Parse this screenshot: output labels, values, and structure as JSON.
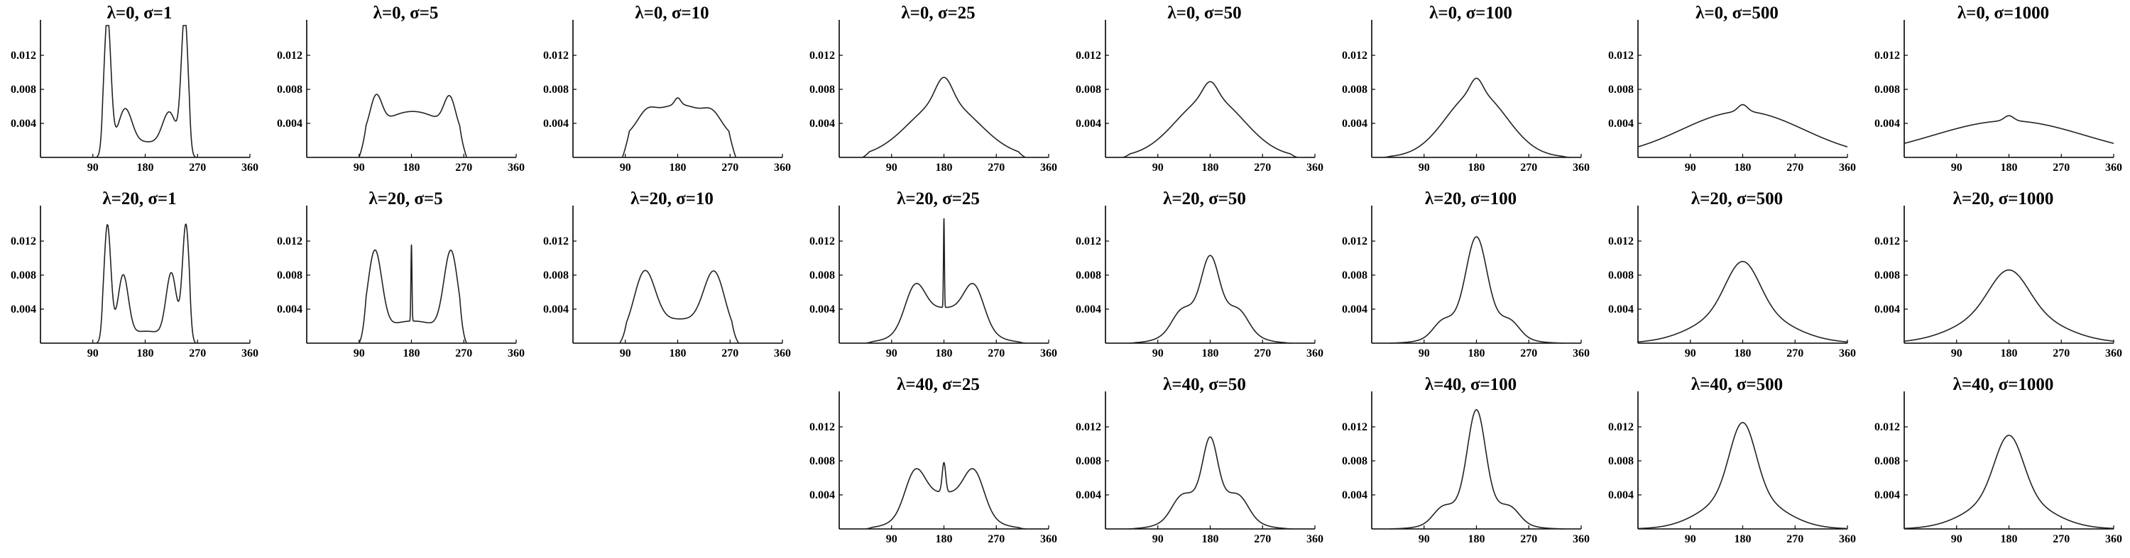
{
  "figure": {
    "rows": 3,
    "cols": 8
  },
  "chart_data": [
    {
      "type": "line",
      "title": "λ=0, σ=1",
      "row": 0,
      "col": 0,
      "xlim": [
        0,
        360
      ],
      "ylim": [
        0,
        0.0155
      ],
      "xticks": [
        90,
        180,
        270,
        360
      ],
      "yticks": [
        0.004,
        0.008,
        0.012
      ],
      "xtick_labels": [
        "90",
        "180",
        "270",
        "360"
      ],
      "ytick_labels": [
        "0.004",
        "0.008",
        "0.012"
      ],
      "peaks": [
        [
          115,
          0.016,
          6
        ],
        [
          145,
          0.0045,
          12
        ],
        [
          222,
          0.0043,
          12
        ],
        [
          248,
          0.016,
          6
        ]
      ],
      "base": [
        0.0018,
        180,
        40
      ],
      "curve_range": [
        95,
        268
      ]
    },
    {
      "type": "line",
      "title": "λ=0, σ=5",
      "row": 0,
      "col": 1,
      "xlim": [
        0,
        360
      ],
      "ylim": [
        0,
        0.0155
      ],
      "xticks": [
        90,
        180,
        270,
        360
      ],
      "yticks": [
        0.004,
        0.008,
        0.012
      ],
      "xtick_labels": [
        "90",
        "180",
        "270",
        "360"
      ],
      "ytick_labels": [
        "0.004",
        "0.008",
        "0.012"
      ],
      "peaks": [
        [
          119,
          0.0037,
          10
        ],
        [
          246,
          0.0036,
          10
        ]
      ],
      "base": [
        0.0054,
        182,
        72
      ],
      "curve_range": [
        90,
        275
      ]
    },
    {
      "type": "line",
      "title": "λ=0, σ=10",
      "row": 0,
      "col": 2,
      "xlim": [
        0,
        360
      ],
      "ylim": [
        0,
        0.0155
      ],
      "xticks": [
        90,
        180,
        270,
        360
      ],
      "yticks": [
        0.004,
        0.008,
        0.012
      ],
      "xtick_labels": [
        "90",
        "180",
        "270",
        "360"
      ],
      "ytick_labels": [
        "0.004",
        "0.008",
        "0.012"
      ],
      "peaks": [
        [
          126,
          0.0012,
          14
        ],
        [
          180,
          0.0008,
          5
        ],
        [
          240,
          0.0012,
          14
        ]
      ],
      "base": [
        0.0062,
        182,
        70
      ],
      "curve_range": [
        85,
        280
      ]
    },
    {
      "type": "line",
      "title": "λ=0, σ=25",
      "row": 0,
      "col": 3,
      "xlim": [
        0,
        360
      ],
      "ylim": [
        0,
        0.0155
      ],
      "xticks": [
        90,
        180,
        270,
        360
      ],
      "yticks": [
        0.004,
        0.008,
        0.012
      ],
      "xtick_labels": [
        "90",
        "180",
        "270",
        "360"
      ],
      "ytick_labels": [
        "0.004",
        "0.008",
        "0.012"
      ],
      "peaks": [
        [
          180,
          0.0028,
          14
        ]
      ],
      "base": [
        0.0066,
        180,
        60
      ],
      "curve_range": [
        40,
        320
      ]
    },
    {
      "type": "line",
      "title": "λ=0, σ=50",
      "row": 0,
      "col": 4,
      "xlim": [
        0,
        360
      ],
      "ylim": [
        0,
        0.0155
      ],
      "xticks": [
        90,
        180,
        270,
        360
      ],
      "yticks": [
        0.004,
        0.008,
        0.012
      ],
      "xtick_labels": [
        "90",
        "180",
        "270",
        "360"
      ],
      "ytick_labels": [
        "0.004",
        "0.008",
        "0.012"
      ],
      "peaks": [
        [
          180,
          0.0018,
          12
        ]
      ],
      "base": [
        0.0071,
        180,
        58
      ],
      "curve_range": [
        30,
        330
      ]
    },
    {
      "type": "line",
      "title": "λ=0, σ=100",
      "row": 0,
      "col": 5,
      "xlim": [
        0,
        360
      ],
      "ylim": [
        0,
        0.0155
      ],
      "xticks": [
        90,
        180,
        270,
        360
      ],
      "yticks": [
        0.004,
        0.008,
        0.012
      ],
      "xtick_labels": [
        "90",
        "180",
        "270",
        "360"
      ],
      "ytick_labels": [
        "0.004",
        "0.008",
        "0.012"
      ],
      "peaks": [
        [
          180,
          0.0016,
          10
        ]
      ],
      "base": [
        0.0077,
        180,
        52
      ],
      "curve_range": [
        20,
        340
      ]
    },
    {
      "type": "line",
      "title": "λ=0, σ=500",
      "row": 0,
      "col": 6,
      "xlim": [
        0,
        360
      ],
      "ylim": [
        0,
        0.0155
      ],
      "xticks": [
        90,
        180,
        270,
        360
      ],
      "yticks": [
        0.004,
        0.008,
        0.012
      ],
      "xtick_labels": [
        "90",
        "180",
        "270",
        "360"
      ],
      "ytick_labels": [
        "0.004",
        "0.008",
        "0.012"
      ],
      "peaks": [
        [
          180,
          0.0008,
          8
        ]
      ],
      "base": [
        0.0054,
        180,
        105
      ],
      "curve_range": [
        0,
        360
      ]
    },
    {
      "type": "line",
      "title": "λ=0, σ=1000",
      "row": 0,
      "col": 7,
      "xlim": [
        0,
        360
      ],
      "ylim": [
        0,
        0.0155
      ],
      "xticks": [
        90,
        180,
        270,
        360
      ],
      "yticks": [
        0.004,
        0.008,
        0.012
      ],
      "xtick_labels": [
        "90",
        "180",
        "270",
        "360"
      ],
      "ytick_labels": [
        "0.004",
        "0.008",
        "0.012"
      ],
      "peaks": [
        [
          180,
          0.0006,
          8
        ]
      ],
      "base": [
        0.0043,
        180,
        130
      ],
      "curve_range": [
        0,
        360
      ]
    },
    {
      "type": "line",
      "title": "λ=20, σ=1",
      "row": 1,
      "col": 0,
      "xlim": [
        0,
        360
      ],
      "ylim": [
        0,
        0.0155
      ],
      "xticks": [
        90,
        180,
        270,
        360
      ],
      "yticks": [
        0.004,
        0.008,
        0.012
      ],
      "xtick_labels": [
        "90",
        "180",
        "270",
        "360"
      ],
      "ytick_labels": [
        "0.004",
        "0.008",
        "0.012"
      ],
      "peaks": [
        [
          115,
          0.0135,
          6
        ],
        [
          142,
          0.0072,
          9
        ],
        [
          225,
          0.0075,
          9
        ],
        [
          250,
          0.0135,
          6
        ]
      ],
      "base": [
        0.0014,
        182,
        40
      ],
      "curve_range": [
        95,
        268
      ]
    },
    {
      "type": "line",
      "title": "λ=20, σ=5",
      "row": 1,
      "col": 1,
      "xlim": [
        0,
        360
      ],
      "ylim": [
        0,
        0.0155
      ],
      "xticks": [
        90,
        180,
        270,
        360
      ],
      "yticks": [
        0.004,
        0.008,
        0.012
      ],
      "xtick_labels": [
        "90",
        "180",
        "270",
        "360"
      ],
      "ytick_labels": [
        "0.004",
        "0.008",
        "0.012"
      ],
      "peaks": [
        [
          117,
          0.0095,
          12
        ],
        [
          248,
          0.0095,
          12
        ],
        [
          180,
          0.009,
          0.9
        ]
      ],
      "base": [
        0.0026,
        182,
        60
      ],
      "curve_range": [
        90,
        275
      ]
    },
    {
      "type": "line",
      "title": "λ=20, σ=10",
      "row": 1,
      "col": 2,
      "xlim": [
        0,
        360
      ],
      "ylim": [
        0,
        0.0155
      ],
      "xticks": [
        90,
        180,
        270,
        360
      ],
      "yticks": [
        0.004,
        0.008,
        0.012
      ],
      "xtick_labels": [
        "90",
        "180",
        "270",
        "360"
      ],
      "ytick_labels": [
        "0.004",
        "0.008",
        "0.012"
      ],
      "peaks": [
        [
          123,
          0.0068,
          18
        ],
        [
          243,
          0.0068,
          18
        ]
      ],
      "base": [
        0.0028,
        182,
        60
      ],
      "curve_range": [
        80,
        285
      ]
    },
    {
      "type": "line",
      "title": "λ=20, σ=25",
      "row": 1,
      "col": 3,
      "xlim": [
        0,
        360
      ],
      "ylim": [
        0,
        0.0155
      ],
      "xticks": [
        90,
        180,
        270,
        360
      ],
      "yticks": [
        0.004,
        0.008,
        0.012
      ],
      "xtick_labels": [
        "90",
        "180",
        "270",
        "360"
      ],
      "ytick_labels": [
        "0.004",
        "0.008",
        "0.012"
      ],
      "peaks": [
        [
          130,
          0.0045,
          17
        ],
        [
          232,
          0.0045,
          17
        ],
        [
          180,
          0.0105,
          0.8
        ]
      ],
      "base": [
        0.0041,
        181,
        50
      ],
      "curve_range": [
        45,
        320
      ]
    },
    {
      "type": "line",
      "title": "λ=20, σ=50",
      "row": 1,
      "col": 4,
      "xlim": [
        0,
        360
      ],
      "ylim": [
        0,
        0.0155
      ],
      "xticks": [
        90,
        180,
        270,
        360
      ],
      "yticks": [
        0.004,
        0.008,
        0.012
      ],
      "xtick_labels": [
        "90",
        "180",
        "270",
        "360"
      ],
      "ytick_labels": [
        "0.004",
        "0.008",
        "0.012"
      ],
      "peaks": [
        [
          180,
          0.0055,
          14
        ],
        [
          128,
          0.0015,
          15
        ],
        [
          232,
          0.0015,
          15
        ]
      ],
      "base": [
        0.0048,
        180,
        44
      ],
      "curve_range": [
        40,
        320
      ]
    },
    {
      "type": "line",
      "title": "λ=20, σ=100",
      "row": 1,
      "col": 5,
      "xlim": [
        0,
        360
      ],
      "ylim": [
        0,
        0.0155
      ],
      "xticks": [
        90,
        180,
        270,
        360
      ],
      "yticks": [
        0.004,
        0.008,
        0.012
      ],
      "xtick_labels": [
        "90",
        "180",
        "270",
        "360"
      ],
      "ytick_labels": [
        "0.004",
        "0.008",
        "0.012"
      ],
      "peaks": [
        [
          180,
          0.0088,
          17
        ],
        [
          120,
          0.0012,
          15
        ],
        [
          240,
          0.0012,
          15
        ]
      ],
      "base": [
        0.0037,
        180,
        45
      ],
      "curve_range": [
        30,
        330
      ]
    },
    {
      "type": "line",
      "title": "λ=20, σ=500",
      "row": 1,
      "col": 6,
      "xlim": [
        0,
        360
      ],
      "ylim": [
        0,
        0.0155
      ],
      "xticks": [
        90,
        180,
        270,
        360
      ],
      "yticks": [
        0.004,
        0.008,
        0.012
      ],
      "xtick_labels": [
        "90",
        "180",
        "270",
        "360"
      ],
      "ytick_labels": [
        "0.004",
        "0.008",
        "0.012"
      ],
      "peaks": [
        [
          180,
          0.0055,
          28
        ]
      ],
      "base": [
        0.0041,
        180,
        70
      ],
      "curve_range": [
        0,
        360
      ]
    },
    {
      "type": "line",
      "title": "λ=20, σ=1000",
      "row": 1,
      "col": 7,
      "xlim": [
        0,
        360
      ],
      "ylim": [
        0,
        0.0155
      ],
      "xticks": [
        90,
        180,
        270,
        360
      ],
      "yticks": [
        0.004,
        0.008,
        0.012
      ],
      "xtick_labels": [
        "90",
        "180",
        "270",
        "360"
      ],
      "ytick_labels": [
        "0.004",
        "0.008",
        "0.012"
      ],
      "peaks": [
        [
          180,
          0.0045,
          32
        ]
      ],
      "base": [
        0.0041,
        180,
        75
      ],
      "curve_range": [
        0,
        360
      ]
    },
    {
      "type": "line",
      "title": "λ=40, σ=25",
      "row": 2,
      "col": 3,
      "xlim": [
        0,
        360
      ],
      "ylim": [
        0,
        0.0155
      ],
      "xticks": [
        90,
        180,
        270,
        360
      ],
      "yticks": [
        0.004,
        0.008,
        0.012
      ],
      "xtick_labels": [
        "90",
        "180",
        "270",
        "360"
      ],
      "ytick_labels": [
        "0.004",
        "0.008",
        "0.012"
      ],
      "peaks": [
        [
          130,
          0.0045,
          17
        ],
        [
          232,
          0.0045,
          17
        ],
        [
          180,
          0.0035,
          3
        ]
      ],
      "base": [
        0.0042,
        181,
        50
      ],
      "curve_range": [
        45,
        320
      ]
    },
    {
      "type": "line",
      "title": "λ=40, σ=50",
      "row": 2,
      "col": 4,
      "xlim": [
        0,
        360
      ],
      "ylim": [
        0,
        0.0155
      ],
      "xticks": [
        90,
        180,
        270,
        360
      ],
      "yticks": [
        0.004,
        0.008,
        0.012
      ],
      "xtick_labels": [
        "90",
        "180",
        "270",
        "360"
      ],
      "ytick_labels": [
        "0.004",
        "0.008",
        "0.012"
      ],
      "peaks": [
        [
          180,
          0.0062,
          12
        ],
        [
          128,
          0.0016,
          15
        ],
        [
          232,
          0.0016,
          15
        ]
      ],
      "base": [
        0.0046,
        180,
        44
      ],
      "curve_range": [
        40,
        320
      ]
    },
    {
      "type": "line",
      "title": "λ=40, σ=100",
      "row": 2,
      "col": 5,
      "xlim": [
        0,
        360
      ],
      "ylim": [
        0,
        0.0155
      ],
      "xticks": [
        90,
        180,
        270,
        360
      ],
      "yticks": [
        0.004,
        0.008,
        0.012
      ],
      "xtick_labels": [
        "90",
        "180",
        "270",
        "360"
      ],
      "ytick_labels": [
        "0.004",
        "0.008",
        "0.012"
      ],
      "peaks": [
        [
          180,
          0.0105,
          15
        ],
        [
          120,
          0.0012,
          15
        ],
        [
          240,
          0.0012,
          15
        ]
      ],
      "base": [
        0.0035,
        180,
        45
      ],
      "curve_range": [
        30,
        330
      ]
    },
    {
      "type": "line",
      "title": "λ=40, σ=500",
      "row": 2,
      "col": 6,
      "xlim": [
        0,
        360
      ],
      "ylim": [
        0,
        0.0155
      ],
      "xticks": [
        90,
        180,
        270,
        360
      ],
      "yticks": [
        0.004,
        0.008,
        0.012
      ],
      "xtick_labels": [
        "90",
        "180",
        "270",
        "360"
      ],
      "ytick_labels": [
        "0.004",
        "0.008",
        "0.012"
      ],
      "peaks": [
        [
          180,
          0.0082,
          22
        ]
      ],
      "base": [
        0.0043,
        180,
        60
      ],
      "curve_range": [
        0,
        360
      ]
    },
    {
      "type": "line",
      "title": "λ=40, σ=1000",
      "row": 2,
      "col": 7,
      "xlim": [
        0,
        360
      ],
      "ylim": [
        0,
        0.0155
      ],
      "xticks": [
        90,
        180,
        270,
        360
      ],
      "yticks": [
        0.004,
        0.008,
        0.012
      ],
      "xtick_labels": [
        "90",
        "180",
        "270",
        "360"
      ],
      "ytick_labels": [
        "0.004",
        "0.008",
        "0.012"
      ],
      "peaks": [
        [
          180,
          0.007,
          24
        ]
      ],
      "base": [
        0.004,
        180,
        62
      ],
      "curve_range": [
        0,
        360
      ]
    }
  ]
}
